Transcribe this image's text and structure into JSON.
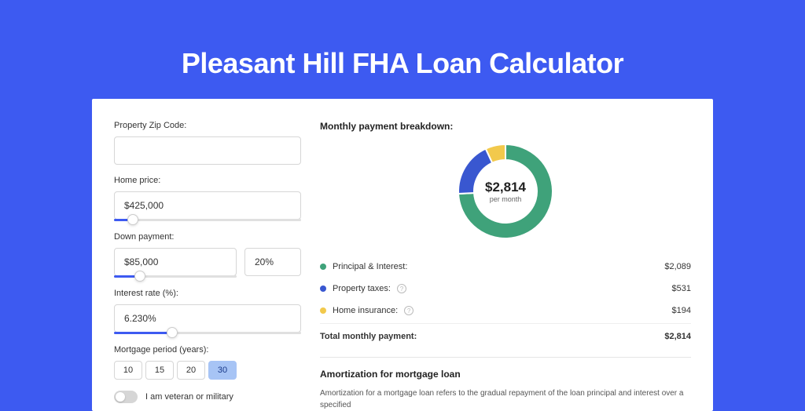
{
  "page": {
    "title": "Pleasant Hill FHA Loan Calculator",
    "background_color": "#3d5af1",
    "card_background": "#ffffff"
  },
  "form": {
    "zip": {
      "label": "Property Zip Code:",
      "value": ""
    },
    "home_price": {
      "label": "Home price:",
      "value": "$425,000",
      "slider_percent": 10
    },
    "down_payment": {
      "label": "Down payment:",
      "amount": "$85,000",
      "percent": "20%",
      "slider_percent": 21
    },
    "interest_rate": {
      "label": "Interest rate (%):",
      "value": "6.230%",
      "slider_percent": 31
    },
    "mortgage_period": {
      "label": "Mortgage period (years):",
      "options": [
        "10",
        "15",
        "20",
        "30"
      ],
      "selected": "30"
    },
    "veteran": {
      "label": "I am veteran or military",
      "checked": false
    }
  },
  "breakdown": {
    "title": "Monthly payment breakdown:",
    "donut": {
      "center_amount": "$2,814",
      "center_sub": "per month",
      "slices": [
        {
          "label": "Principal & Interest",
          "percent": 74.2,
          "color": "#3fa27a"
        },
        {
          "label": "Property taxes",
          "percent": 18.9,
          "color": "#3957d0"
        },
        {
          "label": "Home insurance",
          "percent": 6.9,
          "color": "#f2c94c"
        }
      ]
    },
    "items": [
      {
        "label": "Principal & Interest:",
        "value": "$2,089",
        "color": "#3fa27a",
        "info": false
      },
      {
        "label": "Property taxes:",
        "value": "$531",
        "color": "#3957d0",
        "info": true
      },
      {
        "label": "Home insurance:",
        "value": "$194",
        "color": "#f2c94c",
        "info": true
      }
    ],
    "total": {
      "label": "Total monthly payment:",
      "value": "$2,814"
    }
  },
  "amortization": {
    "title": "Amortization for mortgage loan",
    "text": "Amortization for a mortgage loan refers to the gradual repayment of the loan principal and interest over a specified"
  },
  "colors": {
    "input_border": "#d6d6d6",
    "slider_fill": "#3d5af1",
    "slider_track": "#e0e0e0",
    "text_primary": "#333333",
    "divider": "#e5e5e5"
  }
}
